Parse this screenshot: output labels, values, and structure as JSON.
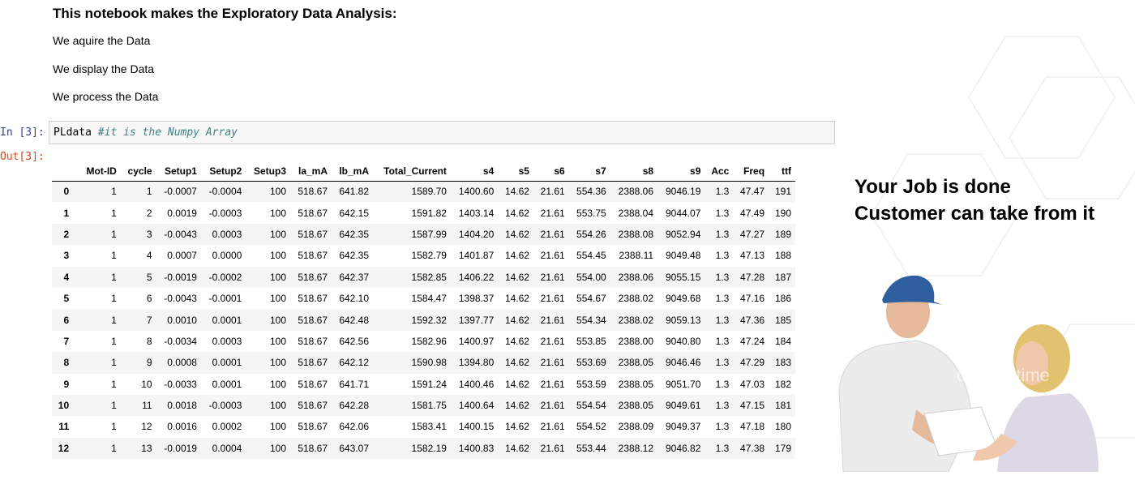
{
  "markdown": {
    "heading": "This notebook makes the Exploratory Data Analysis:",
    "lines": [
      "We aquire the Data",
      "We display the Data",
      "We process the Data"
    ]
  },
  "cell": {
    "in_prompt": "In [3]:",
    "out_prompt": "Out[3]:",
    "code": "PLdata ",
    "comment": "#it is the Numpy Array"
  },
  "table": {
    "columns": [
      "Mot-ID",
      "cycle",
      "Setup1",
      "Setup2",
      "Setup3",
      "la_mA",
      "lb_mA",
      "Total_Current",
      "s4",
      "s5",
      "s6",
      "s7",
      "s8",
      "s9",
      "Acc",
      "Freq",
      "ttf"
    ],
    "rows": [
      [
        "0",
        "1",
        "1",
        "-0.0007",
        "-0.0004",
        "100",
        "518.67",
        "641.82",
        "1589.70",
        "1400.60",
        "14.62",
        "21.61",
        "554.36",
        "2388.06",
        "9046.19",
        "1.3",
        "47.47",
        "191"
      ],
      [
        "1",
        "1",
        "2",
        "0.0019",
        "-0.0003",
        "100",
        "518.67",
        "642.15",
        "1591.82",
        "1403.14",
        "14.62",
        "21.61",
        "553.75",
        "2388.04",
        "9044.07",
        "1.3",
        "47.49",
        "190"
      ],
      [
        "2",
        "1",
        "3",
        "-0.0043",
        "0.0003",
        "100",
        "518.67",
        "642.35",
        "1587.99",
        "1404.20",
        "14.62",
        "21.61",
        "554.26",
        "2388.08",
        "9052.94",
        "1.3",
        "47.27",
        "189"
      ],
      [
        "3",
        "1",
        "4",
        "0.0007",
        "0.0000",
        "100",
        "518.67",
        "642.35",
        "1582.79",
        "1401.87",
        "14.62",
        "21.61",
        "554.45",
        "2388.11",
        "9049.48",
        "1.3",
        "47.13",
        "188"
      ],
      [
        "4",
        "1",
        "5",
        "-0.0019",
        "-0.0002",
        "100",
        "518.67",
        "642.37",
        "1582.85",
        "1406.22",
        "14.62",
        "21.61",
        "554.00",
        "2388.06",
        "9055.15",
        "1.3",
        "47.28",
        "187"
      ],
      [
        "5",
        "1",
        "6",
        "-0.0043",
        "-0.0001",
        "100",
        "518.67",
        "642.10",
        "1584.47",
        "1398.37",
        "14.62",
        "21.61",
        "554.67",
        "2388.02",
        "9049.68",
        "1.3",
        "47.16",
        "186"
      ],
      [
        "6",
        "1",
        "7",
        "0.0010",
        "0.0001",
        "100",
        "518.67",
        "642.48",
        "1592.32",
        "1397.77",
        "14.62",
        "21.61",
        "554.34",
        "2388.02",
        "9059.13",
        "1.3",
        "47.36",
        "185"
      ],
      [
        "7",
        "1",
        "8",
        "-0.0034",
        "0.0003",
        "100",
        "518.67",
        "642.56",
        "1582.96",
        "1400.97",
        "14.62",
        "21.61",
        "553.85",
        "2388.00",
        "9040.80",
        "1.3",
        "47.24",
        "184"
      ],
      [
        "8",
        "1",
        "9",
        "0.0008",
        "0.0001",
        "100",
        "518.67",
        "642.12",
        "1590.98",
        "1394.80",
        "14.62",
        "21.61",
        "553.69",
        "2388.05",
        "9046.46",
        "1.3",
        "47.29",
        "183"
      ],
      [
        "9",
        "1",
        "10",
        "-0.0033",
        "0.0001",
        "100",
        "518.67",
        "641.71",
        "1591.24",
        "1400.46",
        "14.62",
        "21.61",
        "553.59",
        "2388.05",
        "9051.70",
        "1.3",
        "47.03",
        "182"
      ],
      [
        "10",
        "1",
        "11",
        "0.0018",
        "-0.0003",
        "100",
        "518.67",
        "642.28",
        "1581.75",
        "1400.64",
        "14.62",
        "21.61",
        "554.54",
        "2388.05",
        "9049.61",
        "1.3",
        "47.15",
        "181"
      ],
      [
        "11",
        "1",
        "12",
        "0.0016",
        "0.0002",
        "100",
        "518.67",
        "642.06",
        "1583.41",
        "1400.15",
        "14.62",
        "21.61",
        "554.52",
        "2388.09",
        "9049.37",
        "1.3",
        "47.18",
        "180"
      ],
      [
        "12",
        "1",
        "13",
        "-0.0019",
        "0.0004",
        "100",
        "518.67",
        "643.07",
        "1582.19",
        "1400.83",
        "14.62",
        "21.61",
        "553.44",
        "2388.12",
        "9046.82",
        "1.3",
        "47.38",
        "179"
      ]
    ]
  },
  "promo": {
    "line1": "Your Job is done",
    "line2": "Customer can take from it"
  },
  "image": {
    "icon": "delivery-photo",
    "watermark": "dreamstime"
  },
  "colors": {
    "in_prompt": "#303f9f",
    "out_prompt": "#d84315",
    "code_comment": "#408080",
    "stripe": "#f5f5f5",
    "cap": "#2f5f9e"
  }
}
